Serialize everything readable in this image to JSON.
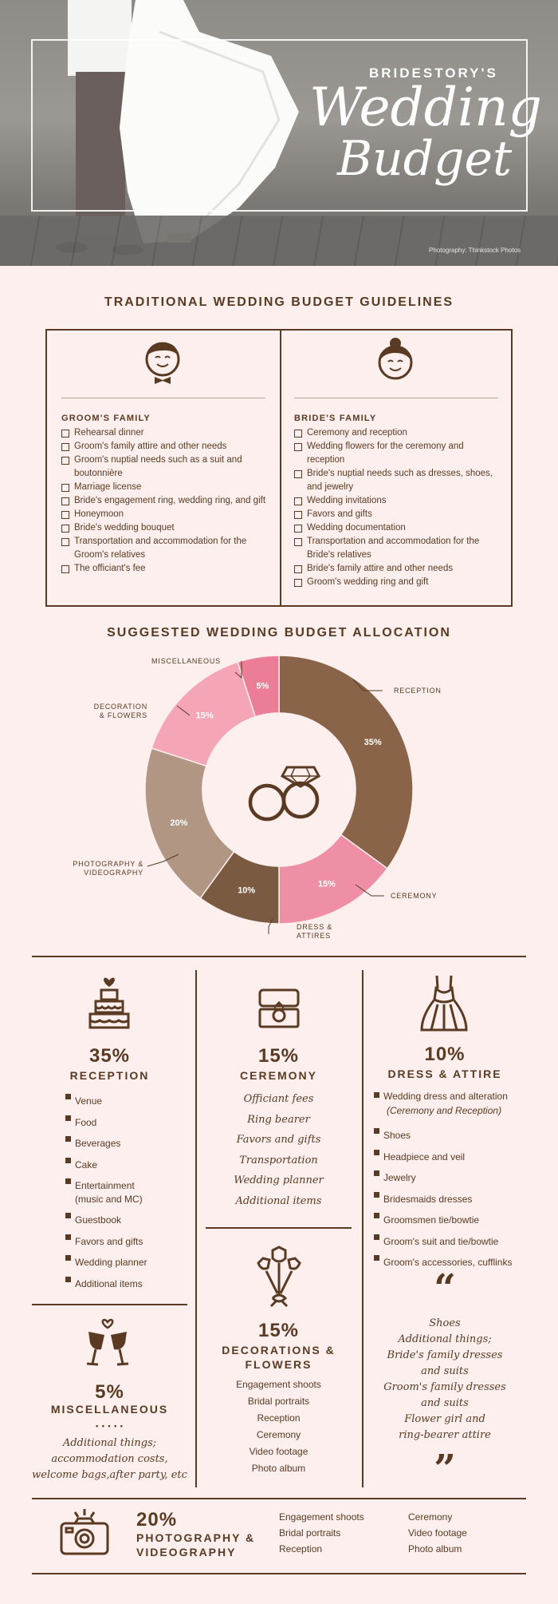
{
  "hero": {
    "brand": "BRIDESTORY'S",
    "title_line1": "Wedding",
    "title_line2": "Budget",
    "credit": "Photography: Thinkstock Photos"
  },
  "guidelines": {
    "title": "TRADITIONAL WEDDING BUDGET GUIDELINES",
    "groom": {
      "heading": "GROOM'S FAMILY",
      "items": [
        "Rehearsal dinner",
        "Groom's family attire and other needs",
        "Groom's nuptial needs such as a suit and boutonnière",
        "Marriage license",
        "Bride's engagement ring, wedding ring, and gift",
        "Honeymoon",
        "Bride's wedding bouquet",
        "Transportation and accommodation for the Groom's relatives",
        "The officiant's fee"
      ]
    },
    "bride": {
      "heading": "BRIDE'S FAMILY",
      "items": [
        "Ceremony and reception",
        "Wedding flowers for the ceremony and reception",
        "Bride's nuptial needs such as dresses, shoes, and jewelry",
        "Wedding invitations",
        "Favors and gifts",
        "Wedding documentation",
        "Transportation and accommodation for the Bride's relatives",
        "Bride's family attire and other needs",
        "Groom's wedding ring and gift"
      ]
    }
  },
  "chart_data": {
    "type": "pie",
    "title": "SUGGESTED WEDDING BUDGET ALLOCATION",
    "categories": [
      "RECEPTION",
      "CEREMONY",
      "DRESS & ATTIRES",
      "PHOTOGRAPHY & VIDEOGRAPHY",
      "DECORATION & FLOWERS",
      "MISCELLANEOUS"
    ],
    "values": [
      35,
      15,
      10,
      20,
      15,
      5
    ],
    "data_labels": [
      "35%",
      "15%",
      "10%",
      "20%",
      "15%",
      "5%"
    ],
    "colors": [
      "#8a6448",
      "#ef8fa6",
      "#7b5a42",
      "#b09683",
      "#f4a5b6",
      "#ec7d97"
    ]
  },
  "reception": {
    "pct": "35%",
    "label": "RECEPTION",
    "items": [
      "Venue",
      "Food",
      "Beverages",
      "Cake",
      "Entertainment",
      "(music and MC)",
      "Guestbook",
      "Favors and gifts",
      "Wedding planner",
      "Additional items"
    ]
  },
  "ceremony": {
    "pct": "15%",
    "label": "CEREMONY",
    "items": [
      "Officiant fees",
      "Ring bearer",
      "Favors and gifts",
      "Transportation",
      "Wedding planner",
      "Additional items"
    ]
  },
  "dress": {
    "pct": "10%",
    "label": "DRESS & ATTIRE",
    "items": [
      "Wedding dress and alteration",
      "Shoes",
      "Headpiece and veil",
      "Jewelry",
      "Bridesmaids dresses",
      "Groomsmen tie/bowtie",
      "Groom's suit and tie/bowtie",
      "Groom's accessories, cufflinks"
    ],
    "note": "(Ceremony and Reception)"
  },
  "decorations": {
    "pct": "15%",
    "label_line1": "DECORATIONS &",
    "label_line2": "FLOWERS",
    "items": [
      "Engagement shoots",
      "Bridal portraits",
      "Reception",
      "Ceremony",
      "Video footage",
      "Photo album"
    ]
  },
  "misc": {
    "pct": "5%",
    "label": "MISCELLANEOUS",
    "dots": "• • • • •",
    "note_lines": [
      "Additional things;",
      "accommodation costs,",
      "welcome bags,after party, etc"
    ]
  },
  "quote": {
    "open": "“",
    "close": "”",
    "lines": [
      "Shoes",
      "Additional things;",
      "Bride's family dresses",
      "and suits",
      "Groom's family dresses",
      "and suits",
      "Flower girl and",
      "ring-bearer attire"
    ]
  },
  "photo": {
    "pct": "20%",
    "label_line1": "PHOTOGRAPHY &",
    "label_line2": "VIDEOGRAPHY",
    "col1": [
      "Engagement shoots",
      "Bridal portraits",
      "Reception"
    ],
    "col2": [
      "Ceremony",
      "Video footage",
      "Photo album"
    ]
  }
}
